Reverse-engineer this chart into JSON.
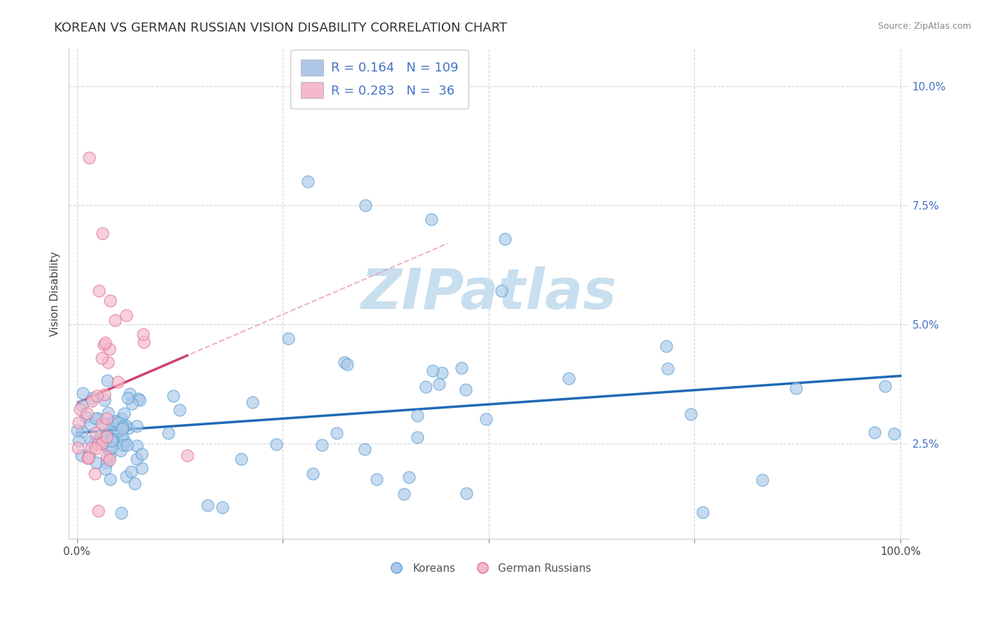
{
  "title": "KOREAN VS GERMAN RUSSIAN VISION DISABILITY CORRELATION CHART",
  "source": "Source: ZipAtlas.com",
  "ylabel": "Vision Disability",
  "korean_color": "#aac8e8",
  "korean_edge_color": "#5a9fd4",
  "german_russian_color": "#f5b8cc",
  "german_russian_edge_color": "#e07090",
  "korean_line_color": "#1f6ab5",
  "german_russian_line_color": "#d04070",
  "german_russian_dashed_color": "#e8a0b8",
  "background_color": "#ffffff",
  "grid_color": "#cccccc",
  "watermark_color": "#c8dff0",
  "R_korean": 0.164,
  "N_korean": 109,
  "R_german": 0.283,
  "N_german": 36,
  "legend_box_color_korean": "#aec6e8",
  "legend_box_color_german": "#f5b8cc",
  "title_fontsize": 13,
  "axis_label_fontsize": 11,
  "tick_fontsize": 11,
  "legend_fontsize": 13
}
